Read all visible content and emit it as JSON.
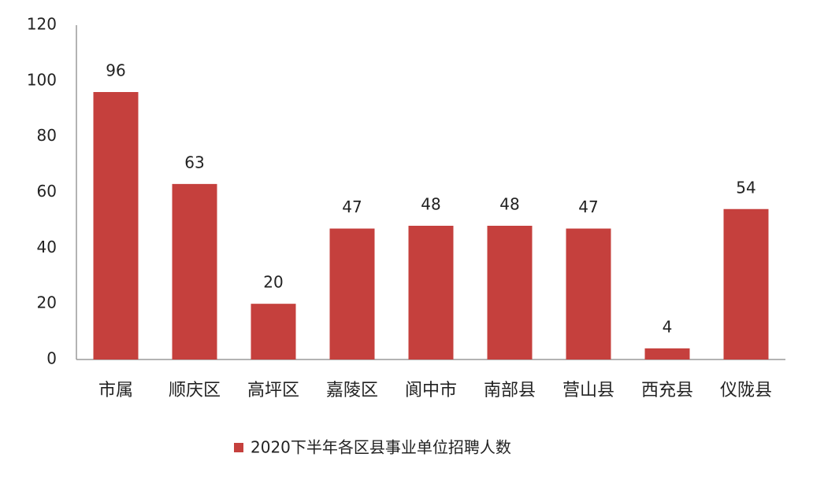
{
  "chart_data": {
    "type": "bar",
    "categories": [
      "市属",
      "顺庆区",
      "高坪区",
      "嘉陵区",
      "阆中市",
      "南部县",
      "营山县",
      "西充县",
      "仪陇县"
    ],
    "series": [
      {
        "name": "2020下半年各区县事业单位招聘人数",
        "color": "#c5403d",
        "values": [
          96,
          63,
          20,
          47,
          48,
          48,
          47,
          4,
          54
        ]
      }
    ],
    "ylim": [
      0,
      120
    ],
    "yticks": [
      0,
      20,
      40,
      60,
      80,
      100,
      120
    ],
    "grid": false,
    "legend": "bottom"
  }
}
